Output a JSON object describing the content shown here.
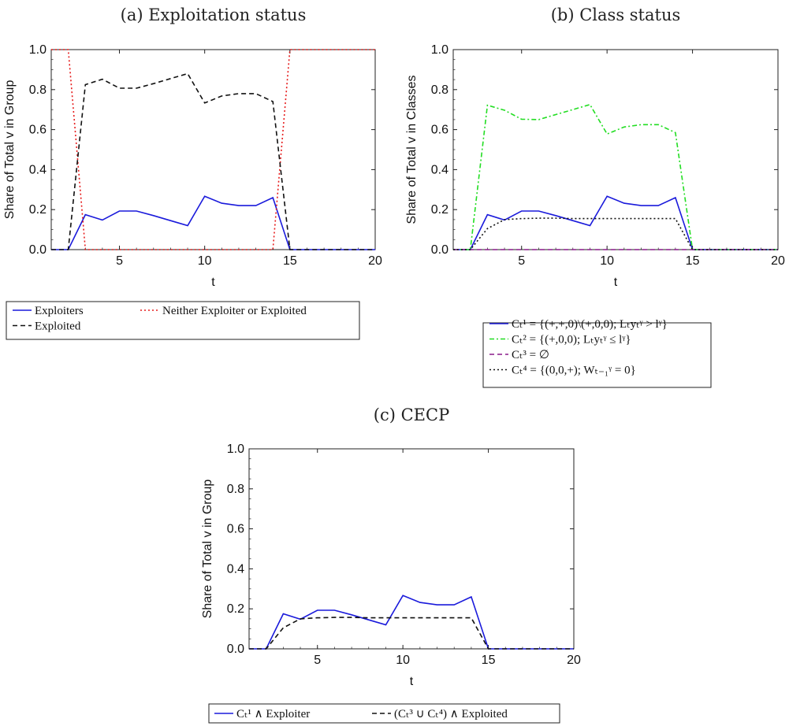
{
  "chart_data": [
    {
      "type": "line",
      "title": "(a) Exploitation status",
      "xlabel": "t",
      "ylabel": "Share of Total v in Group",
      "xlim": [
        1,
        20
      ],
      "ylim": [
        0,
        1
      ],
      "xticks": [
        "5",
        "10",
        "15",
        "20"
      ],
      "yticks": [
        "0.0",
        "0.2",
        "0.4",
        "0.6",
        "0.8",
        "1.0"
      ],
      "grid": false,
      "legend_position": "bottom",
      "x": [
        1,
        2,
        3,
        4,
        5,
        6,
        7,
        8,
        9,
        10,
        11,
        12,
        13,
        14,
        15,
        16,
        17,
        18,
        19,
        20
      ],
      "series": [
        {
          "name": "Exploiters",
          "color": "#1a1adb",
          "dash": "solid",
          "values": [
            0,
            0,
            0.175,
            0.148,
            0.193,
            0.193,
            0.17,
            0.145,
            0.12,
            0.267,
            0.232,
            0.22,
            0.22,
            0.26,
            0,
            0,
            0,
            0,
            0,
            0
          ]
        },
        {
          "name": "Neither Exploiter or Exploited",
          "color": "#e61b1b",
          "dash": "dotted",
          "values": [
            1,
            1,
            0,
            0,
            0,
            0,
            0,
            0,
            0,
            0,
            0,
            0,
            0,
            0,
            1,
            1,
            1,
            1,
            1,
            1
          ]
        },
        {
          "name": "Exploited",
          "color": "#111111",
          "dash": "dashed",
          "values": [
            0,
            0,
            0.825,
            0.852,
            0.807,
            0.807,
            0.83,
            0.855,
            0.88,
            0.733,
            0.768,
            0.78,
            0.78,
            0.74,
            0,
            0,
            0,
            0,
            0,
            0
          ]
        }
      ]
    },
    {
      "type": "line",
      "title": "(b) Class status",
      "xlabel": "t",
      "ylabel": "Share of Total v in Classes",
      "xlim": [
        1,
        20
      ],
      "ylim": [
        0,
        1
      ],
      "xticks": [
        "5",
        "10",
        "15",
        "20"
      ],
      "yticks": [
        "0.0",
        "0.2",
        "0.4",
        "0.6",
        "0.8",
        "1.0"
      ],
      "grid": false,
      "legend_position": "bottom",
      "x": [
        1,
        2,
        3,
        4,
        5,
        6,
        7,
        8,
        9,
        10,
        11,
        12,
        13,
        14,
        15,
        16,
        17,
        18,
        19,
        20
      ],
      "series": [
        {
          "name": "Cₜ¹ = {(+,+,0)\\(+,0,0); Lₜyₜᵞ > lᵞ}",
          "color": "#1a1adb",
          "dash": "solid",
          "values": [
            0,
            0,
            0.175,
            0.148,
            0.193,
            0.193,
            0.17,
            0.145,
            0.12,
            0.267,
            0.232,
            0.22,
            0.22,
            0.26,
            0,
            0,
            0,
            0,
            0,
            0
          ]
        },
        {
          "name": "Cₜ² = {(+,0,0); Lₜyₜᵞ ≤ lᵞ}",
          "color": "#22dd22",
          "dash": "dashdot",
          "values": [
            0,
            0,
            0.722,
            0.697,
            0.652,
            0.65,
            0.675,
            0.7,
            0.725,
            0.578,
            0.613,
            0.625,
            0.625,
            0.585,
            0,
            0,
            0,
            0,
            0,
            0
          ]
        },
        {
          "name": "Cₜ³ = ∅",
          "color": "#8a1a8a",
          "dash": "dashed",
          "values": [
            0,
            0,
            0,
            0,
            0,
            0,
            0,
            0,
            0,
            0,
            0,
            0,
            0,
            0,
            0,
            0,
            0,
            0,
            0,
            0
          ]
        },
        {
          "name": "Cₜ⁴ = {(0,0,+); Wₜ₋₁ᵞ = 0}",
          "color": "#111111",
          "dash": "dotted",
          "values": [
            0,
            0,
            0.105,
            0.15,
            0.155,
            0.157,
            0.157,
            0.155,
            0.155,
            0.155,
            0.155,
            0.155,
            0.155,
            0.155,
            0,
            0,
            0,
            0,
            0,
            0
          ]
        }
      ]
    },
    {
      "type": "line",
      "title": "(c) CECP",
      "xlabel": "t",
      "ylabel": "Share of Total v in Group",
      "xlim": [
        1,
        20
      ],
      "ylim": [
        0,
        1
      ],
      "xticks": [
        "5",
        "10",
        "15",
        "20"
      ],
      "yticks": [
        "0.0",
        "0.2",
        "0.4",
        "0.6",
        "0.8",
        "1.0"
      ],
      "grid": false,
      "legend_position": "bottom",
      "x": [
        1,
        2,
        3,
        4,
        5,
        6,
        7,
        8,
        9,
        10,
        11,
        12,
        13,
        14,
        15,
        16,
        17,
        18,
        19,
        20
      ],
      "series": [
        {
          "name": "Cₜ¹ ∧ Exploiter",
          "color": "#1a1adb",
          "dash": "solid",
          "values": [
            0,
            0,
            0.175,
            0.148,
            0.193,
            0.193,
            0.17,
            0.145,
            0.12,
            0.267,
            0.232,
            0.22,
            0.22,
            0.26,
            0,
            0,
            0,
            0,
            0,
            0
          ]
        },
        {
          "name": "(Cₜ³ ∪ Cₜ⁴) ∧ Exploited",
          "color": "#111111",
          "dash": "dashed",
          "values": [
            0,
            0,
            0.105,
            0.15,
            0.155,
            0.157,
            0.157,
            0.155,
            0.155,
            0.155,
            0.155,
            0.155,
            0.155,
            0.155,
            0,
            0,
            0,
            0,
            0,
            0
          ]
        }
      ]
    }
  ]
}
